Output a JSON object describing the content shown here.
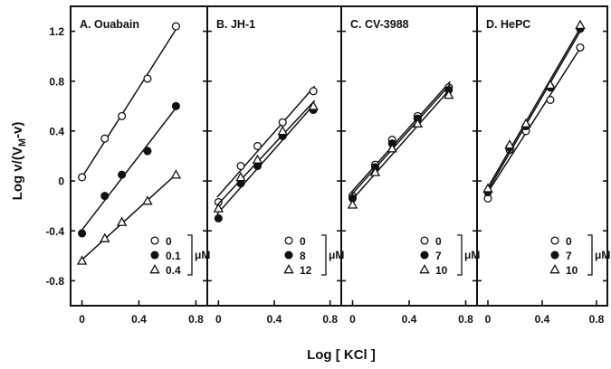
{
  "chart_data": [
    {
      "type": "scatter",
      "panel_label": "A. Ouabain",
      "xlim": [
        -0.08,
        0.88
      ],
      "ylim": [
        -1.0,
        1.4
      ],
      "x_ticks": [
        "0",
        "0.4",
        "0.8"
      ],
      "y_ticks": [
        "1.2",
        "0.8",
        "0.4",
        "0",
        "-0.4",
        "-0.8"
      ],
      "legend_unit": "μM",
      "legend_placement": "bottom-right",
      "series": [
        {
          "name": "0",
          "marker": "open-circle",
          "x": [
            0,
            0.16,
            0.28,
            0.46,
            0.66
          ],
          "y": [
            0.03,
            0.34,
            0.52,
            0.82,
            1.24
          ]
        },
        {
          "name": "0.1",
          "marker": "filled-circle",
          "x": [
            0,
            0.16,
            0.28,
            0.46,
            0.66
          ],
          "y": [
            -0.42,
            -0.12,
            0.05,
            0.24,
            0.6
          ]
        },
        {
          "name": "0.4",
          "marker": "open-triangle",
          "x": [
            0,
            0.16,
            0.28,
            0.46,
            0.66
          ],
          "y": [
            -0.64,
            -0.46,
            -0.33,
            -0.16,
            0.05
          ]
        }
      ]
    },
    {
      "type": "scatter",
      "panel_label": "B. JH-1",
      "xlim": [
        -0.08,
        0.88
      ],
      "ylim": [
        -1.0,
        1.4
      ],
      "x_ticks": [
        "0",
        "0.4",
        "0.8"
      ],
      "legend_unit": "μM",
      "legend_placement": "bottom-right",
      "series": [
        {
          "name": "0",
          "marker": "open-circle",
          "x": [
            0,
            0.16,
            0.28,
            0.46,
            0.68
          ],
          "y": [
            -0.17,
            0.12,
            0.28,
            0.47,
            0.72
          ]
        },
        {
          "name": "8",
          "marker": "filled-circle",
          "x": [
            0,
            0.16,
            0.28,
            0.46,
            0.68
          ],
          "y": [
            -0.3,
            -0.02,
            0.12,
            0.36,
            0.57
          ]
        },
        {
          "name": "12",
          "marker": "open-triangle",
          "x": [
            0,
            0.16,
            0.28,
            0.46,
            0.68
          ],
          "y": [
            -0.22,
            0.03,
            0.17,
            0.4,
            0.6
          ]
        }
      ]
    },
    {
      "type": "scatter",
      "panel_label": "C. CV-3988",
      "xlim": [
        -0.08,
        0.88
      ],
      "ylim": [
        -1.0,
        1.4
      ],
      "x_ticks": [
        "0",
        "0.4",
        "0.8"
      ],
      "legend_unit": "μM",
      "legend_placement": "bottom-right",
      "series": [
        {
          "name": "0",
          "marker": "open-circle",
          "x": [
            0,
            0.16,
            0.28,
            0.46,
            0.68
          ],
          "y": [
            -0.12,
            0.13,
            0.33,
            0.52,
            0.75
          ]
        },
        {
          "name": "7",
          "marker": "filled-circle",
          "x": [
            0,
            0.16,
            0.28,
            0.46,
            0.68
          ],
          "y": [
            -0.14,
            0.11,
            0.3,
            0.5,
            0.73
          ]
        },
        {
          "name": "10",
          "marker": "open-triangle",
          "x": [
            0,
            0.16,
            0.28,
            0.46,
            0.68
          ],
          "y": [
            -0.19,
            0.07,
            0.26,
            0.46,
            0.69
          ]
        }
      ]
    },
    {
      "type": "scatter",
      "panel_label": "D. HePC",
      "xlim": [
        -0.08,
        0.88
      ],
      "ylim": [
        -1.0,
        1.4
      ],
      "x_ticks": [
        "0",
        "0.4",
        "0.8"
      ],
      "legend_unit": "μM",
      "legend_placement": "bottom-right",
      "series": [
        {
          "name": "0",
          "marker": "open-circle",
          "x": [
            0,
            0.16,
            0.28,
            0.46,
            0.68
          ],
          "y": [
            -0.14,
            0.25,
            0.4,
            0.65,
            1.07
          ]
        },
        {
          "name": "7",
          "marker": "filled-circle",
          "x": [
            0,
            0.16,
            0.28,
            0.46,
            0.68
          ],
          "y": [
            -0.09,
            0.27,
            0.44,
            0.75,
            1.22
          ]
        },
        {
          "name": "10",
          "marker": "open-triangle",
          "x": [
            0,
            0.16,
            0.28,
            0.46,
            0.68
          ],
          "y": [
            -0.06,
            0.29,
            0.46,
            0.77,
            1.25
          ]
        }
      ]
    }
  ],
  "axes": {
    "xlabel": "Log [ KCl ]",
    "ylabel": "Log v/(V",
    "ylabel_sub": "M",
    "ylabel_tail": "-v)"
  }
}
